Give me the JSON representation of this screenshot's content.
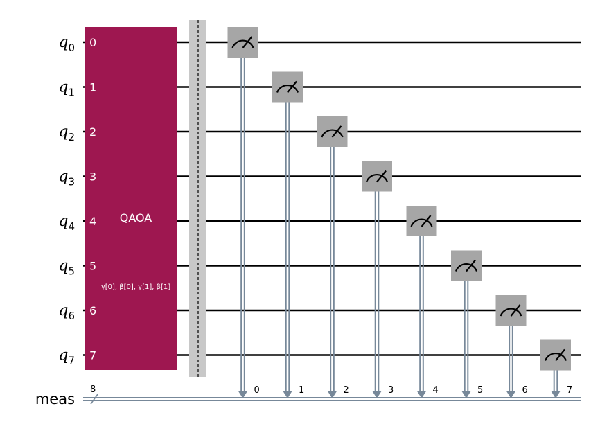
{
  "qubits": [
    {
      "label": "q",
      "sub": "0"
    },
    {
      "label": "q",
      "sub": "1"
    },
    {
      "label": "q",
      "sub": "2"
    },
    {
      "label": "q",
      "sub": "3"
    },
    {
      "label": "q",
      "sub": "4"
    },
    {
      "label": "q",
      "sub": "5"
    },
    {
      "label": "q",
      "sub": "6"
    },
    {
      "label": "q",
      "sub": "7"
    }
  ],
  "classical_register": {
    "label": "meas",
    "size": "8"
  },
  "gate": {
    "name": "QAOA",
    "params": "γ[0], β[0], γ[1], β[1]",
    "ports": [
      "0",
      "1",
      "2",
      "3",
      "4",
      "5",
      "6",
      "7"
    ],
    "color": "#9e1750"
  },
  "measurements": [
    {
      "qubit": 0,
      "bit": "0"
    },
    {
      "qubit": 1,
      "bit": "1"
    },
    {
      "qubit": 2,
      "bit": "2"
    },
    {
      "qubit": 3,
      "bit": "3"
    },
    {
      "qubit": 4,
      "bit": "4"
    },
    {
      "qubit": 5,
      "bit": "5"
    },
    {
      "qubit": 6,
      "bit": "6"
    },
    {
      "qubit": 7,
      "bit": "7"
    }
  ],
  "colors": {
    "wire": "#000000",
    "classical_wire": "#778899",
    "measure_box": "#a6a6a6",
    "barrier": "#c8c8c8"
  }
}
